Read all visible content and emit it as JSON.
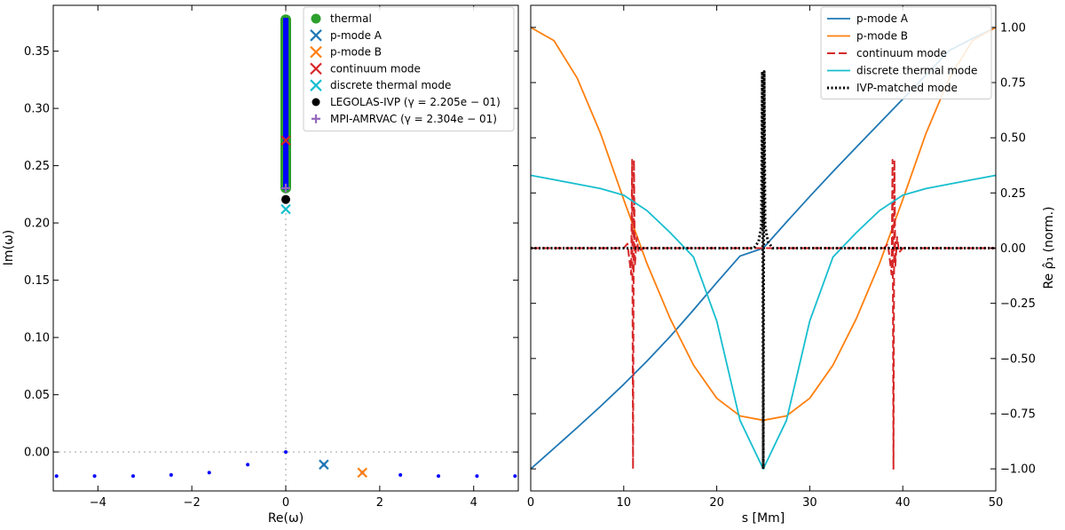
{
  "chart_data": [
    {
      "type": "scatter",
      "xlabel": "Re(ω)",
      "ylabel": "Im(ω)",
      "xlim": [
        -4.95,
        4.95
      ],
      "ylim": [
        -0.034,
        0.39
      ],
      "xticks": [
        -4,
        -2,
        0,
        2,
        4
      ],
      "xtick_labels": [
        "−4",
        "−2",
        "0",
        "2",
        "4"
      ],
      "yticks": [
        0.0,
        0.05,
        0.1,
        0.15,
        0.2,
        0.25,
        0.3,
        0.35
      ],
      "ytick_labels": [
        "0.00",
        "0.05",
        "0.10",
        "0.15",
        "0.20",
        "0.25",
        "0.30",
        "0.35"
      ],
      "grid": false,
      "legend_position": "top-right",
      "colors": {
        "thermal": "#2ca02c",
        "spectrum": "#0000ff",
        "pA": "#1f77b4",
        "pB": "#ff7f0e",
        "cont": "#d62728",
        "disc": "#17becf",
        "ivp": "#000000",
        "amr": "#9467bd",
        "zero": "#c0c0c0"
      },
      "legend": [
        {
          "key": "thermal",
          "label": "thermal",
          "marker": "circle"
        },
        {
          "key": "pA",
          "label": "p-mode A",
          "marker": "x"
        },
        {
          "key": "pB",
          "label": "p-mode B",
          "marker": "x"
        },
        {
          "key": "cont",
          "label": "continuum mode",
          "marker": "x"
        },
        {
          "key": "disc",
          "label": "discrete thermal mode",
          "marker": "x"
        },
        {
          "key": "ivp",
          "label": "LEGOLAS-IVP (γ = 2.205e − 01)",
          "marker": "dot"
        },
        {
          "key": "amr",
          "label": "MPI-AMRVAC (γ = 2.304e − 01)",
          "marker": "plus"
        }
      ],
      "thermal_band": {
        "x": 0,
        "y_from": 0.229,
        "y_to": 0.379
      },
      "spectrum_points": [
        {
          "x": -4.88,
          "y": -0.021
        },
        {
          "x": -4.07,
          "y": -0.021
        },
        {
          "x": -3.25,
          "y": -0.021
        },
        {
          "x": -2.44,
          "y": -0.02
        },
        {
          "x": -1.63,
          "y": -0.018
        },
        {
          "x": -0.81,
          "y": -0.011
        },
        {
          "x": 0.0,
          "y": 0.0
        },
        {
          "x": 0.81,
          "y": -0.011
        },
        {
          "x": 1.63,
          "y": -0.018
        },
        {
          "x": 2.44,
          "y": -0.02
        },
        {
          "x": 3.25,
          "y": -0.021
        },
        {
          "x": 4.07,
          "y": -0.021
        },
        {
          "x": 4.88,
          "y": -0.021
        }
      ],
      "modes": {
        "pA": {
          "x": 0.81,
          "y": -0.011
        },
        "pB": {
          "x": 1.63,
          "y": -0.018
        },
        "cont": {
          "x": 0.0,
          "y": 0.272
        },
        "disc": {
          "x": 0.0,
          "y": 0.212
        },
        "ivp": {
          "x": 0.0,
          "y": 0.2205
        },
        "amr": {
          "x": 0.0,
          "y": 0.2304
        }
      }
    },
    {
      "type": "line",
      "xlabel": "s [Mm]",
      "ylabel": "Re ρ̂₁ (norm.)",
      "xlim": [
        0,
        50
      ],
      "ylim": [
        -1.1,
        1.1
      ],
      "xticks": [
        0,
        10,
        20,
        30,
        40,
        50
      ],
      "yticks": [
        -1.0,
        -0.75,
        -0.5,
        -0.25,
        0.0,
        0.25,
        0.5,
        0.75,
        1.0
      ],
      "ytick_labels": [
        "−1.00",
        "−0.75",
        "−0.50",
        "−0.25",
        "0.00",
        "0.25",
        "0.50",
        "0.75",
        "1.00"
      ],
      "grid": false,
      "legend_position": "top-right",
      "series": [
        {
          "name": "p-mode A",
          "color": "#1f77b4",
          "style": "solid",
          "x": [
            0,
            2.5,
            5,
            7.5,
            10,
            12.5,
            15,
            17.5,
            20,
            22.5,
            25,
            27.5,
            30,
            32.5,
            35,
            37.5,
            40,
            42.5,
            45,
            47.5,
            50
          ],
          "y": [
            -1.0,
            -0.907,
            -0.813,
            -0.717,
            -0.617,
            -0.512,
            -0.4,
            -0.28,
            -0.156,
            -0.036,
            0.0,
            0.118,
            0.234,
            0.347,
            0.457,
            0.566,
            0.675,
            0.785,
            0.895,
            0.95,
            1.0
          ]
        },
        {
          "name": "p-mode B",
          "color": "#ff7f0e",
          "style": "solid",
          "x": [
            0,
            2.5,
            5,
            7.5,
            10,
            12.5,
            15,
            17.5,
            20,
            22.5,
            25,
            27.5,
            30,
            32.5,
            35,
            37.5,
            40,
            42.5,
            45,
            47.5,
            50
          ],
          "y": [
            1.0,
            0.94,
            0.77,
            0.52,
            0.22,
            -0.07,
            -0.32,
            -0.53,
            -0.68,
            -0.76,
            -0.78,
            -0.76,
            -0.68,
            -0.53,
            -0.32,
            -0.07,
            0.22,
            0.52,
            0.77,
            0.94,
            1.0
          ]
        },
        {
          "name": "continuum mode",
          "color": "#d62728",
          "style": "dashed",
          "x": [
            0,
            10.0,
            10.4,
            10.6,
            10.8,
            10.9,
            11.0,
            11.1,
            11.2,
            11.4,
            11.6,
            12.0,
            25.0,
            38.0,
            38.4,
            38.6,
            38.8,
            38.9,
            39.0,
            39.1,
            39.2,
            39.4,
            39.6,
            40.0,
            50
          ],
          "y": [
            0.0,
            0.0,
            0.02,
            -0.05,
            -0.12,
            0.4,
            -1.0,
            0.4,
            -0.08,
            0.05,
            -0.02,
            0.0,
            0.0,
            0.0,
            0.02,
            -0.05,
            -0.12,
            0.4,
            -1.0,
            0.4,
            -0.08,
            0.05,
            -0.02,
            0.0,
            0.0
          ]
        },
        {
          "name": "discrete thermal mode",
          "color": "#17becf",
          "style": "solid",
          "x": [
            0,
            2.5,
            5,
            7.5,
            10,
            12.5,
            15,
            17.5,
            20,
            22.5,
            25,
            27.5,
            30,
            32.5,
            35,
            37.5,
            40,
            42.5,
            45,
            47.5,
            50
          ],
          "y": [
            0.33,
            0.31,
            0.29,
            0.27,
            0.24,
            0.17,
            0.07,
            -0.04,
            -0.33,
            -0.78,
            -1.0,
            -0.78,
            -0.33,
            -0.04,
            0.07,
            0.17,
            0.24,
            0.27,
            0.29,
            0.31,
            0.33
          ]
        },
        {
          "name": "IVP-matched mode",
          "color": "#000000",
          "style": "dotted",
          "x": [
            0,
            24.0,
            24.5,
            24.8,
            24.9,
            25.0,
            25.1,
            25.2,
            25.5,
            26.0,
            50
          ],
          "y": [
            0.0,
            0.0,
            0.03,
            0.1,
            0.8,
            -1.0,
            0.8,
            0.1,
            0.03,
            0.0,
            0.0
          ]
        }
      ]
    }
  ]
}
